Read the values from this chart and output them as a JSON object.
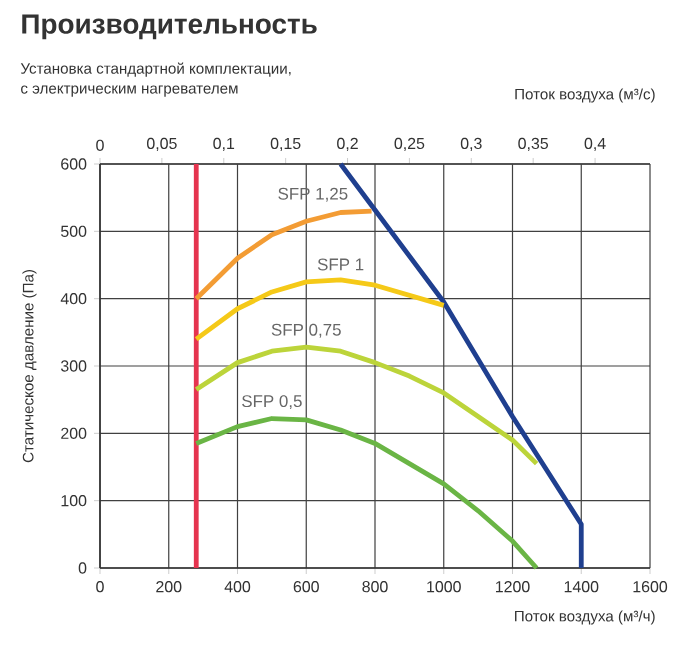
{
  "chart_data": {
    "type": "line",
    "title": "Производительность",
    "subtitle": "Установка стандартной комплектации,\nс электрическим нагревателем",
    "xlabel": "Поток воздуха (м³/ч)",
    "x2label": "Поток воздуха (м³/с)",
    "ylabel": "Статическое давление (Па)",
    "xlim": [
      0,
      1600
    ],
    "xticks": [
      0,
      200,
      400,
      600,
      800,
      1000,
      1200,
      1400,
      1600
    ],
    "x2lim": [
      0,
      0.4444
    ],
    "x2ticks": [
      0,
      {
        "value": 0.05,
        "label": "0,05"
      },
      {
        "value": 0.1,
        "label": "0,1"
      },
      {
        "value": 0.15,
        "label": "0,15"
      },
      {
        "value": 0.2,
        "label": "0,2"
      },
      {
        "value": 0.25,
        "label": "0,25"
      },
      {
        "value": 0.3,
        "label": "0,3"
      },
      {
        "value": 0.35,
        "label": "0,35"
      },
      {
        "value": 0.4,
        "label": "0,4"
      }
    ],
    "ylim": [
      0,
      600
    ],
    "yticks": [
      0,
      100,
      200,
      300,
      400,
      500,
      600
    ],
    "grid": true,
    "marker": "none",
    "line_style": "solid",
    "series": [
      {
        "color": "#e5344f",
        "x": [
          280,
          280
        ],
        "values": [
          0,
          600
        ]
      },
      {
        "color": "#1f3f8f",
        "x": [
          700,
          1000,
          1200,
          1400,
          1400
        ],
        "values": [
          600,
          395,
          225,
          65,
          0
        ]
      },
      {
        "name": "SFP 1,25",
        "color": "#f39c34",
        "x": [
          280,
          400,
          500,
          600,
          700,
          790
        ],
        "values": [
          400,
          460,
          495,
          515,
          528,
          530
        ]
      },
      {
        "name": "SFP 1",
        "color": "#f5c918",
        "x": [
          280,
          400,
          500,
          600,
          700,
          800,
          900,
          1000
        ],
        "values": [
          340,
          385,
          410,
          425,
          428,
          420,
          405,
          390
        ]
      },
      {
        "name": "SFP 0,75",
        "color": "#bcd43a",
        "x": [
          280,
          400,
          500,
          600,
          700,
          800,
          900,
          1000,
          1100,
          1200,
          1270
        ],
        "values": [
          265,
          305,
          322,
          328,
          322,
          305,
          285,
          260,
          225,
          190,
          155
        ]
      },
      {
        "name": "SFP 0,5",
        "color": "#6ab545",
        "x": [
          280,
          400,
          500,
          600,
          700,
          800,
          900,
          1000,
          1100,
          1200,
          1270
        ],
        "values": [
          185,
          210,
          222,
          220,
          205,
          185,
          155,
          125,
          85,
          40,
          0
        ]
      }
    ]
  }
}
